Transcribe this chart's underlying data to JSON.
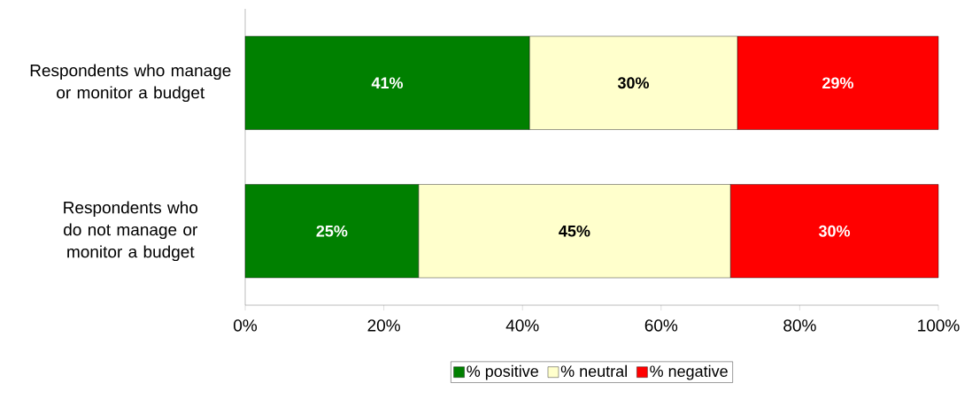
{
  "chart_data": {
    "type": "bar",
    "orientation": "horizontal",
    "stacked": true,
    "categories": [
      "Respondents who manage or monitor a budget",
      "Respondents who do not manage or monitor a budget"
    ],
    "series": [
      {
        "name": "% positive",
        "color": "#008000",
        "values": [
          41,
          25
        ],
        "value_labels": [
          "41%",
          "25%"
        ]
      },
      {
        "name": "% neutral",
        "color": "#ffffcc",
        "values": [
          30,
          45
        ],
        "value_labels": [
          "30%",
          "45%"
        ]
      },
      {
        "name": "% negative",
        "color": "#ff0000",
        "values": [
          29,
          30
        ],
        "value_labels": [
          "29%",
          "30%"
        ]
      }
    ],
    "xlim": [
      0,
      100
    ],
    "xticks": [
      {
        "value": 0,
        "label": "0%"
      },
      {
        "value": 20,
        "label": "20%"
      },
      {
        "value": 40,
        "label": "40%"
      },
      {
        "value": 60,
        "label": "60%"
      },
      {
        "value": 80,
        "label": "80%"
      },
      {
        "value": 100,
        "label": "100%"
      }
    ],
    "legend": "bottom",
    "grid": false
  }
}
